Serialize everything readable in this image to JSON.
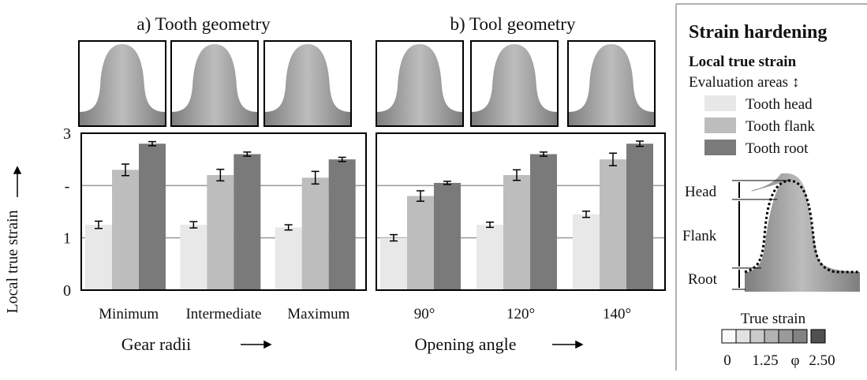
{
  "chart_data": [
    {
      "type": "bar",
      "title": "a) Tooth geometry",
      "y_label": "Local true strain",
      "x_label": "Gear radii",
      "categories": [
        "Minimum",
        "Intermediate",
        "Maximum"
      ],
      "series": [
        {
          "name": "Tooth head",
          "color": "#e8e8e8",
          "values": [
            1.25,
            1.25,
            1.2
          ],
          "errors": [
            0.07,
            0.06,
            0.05
          ]
        },
        {
          "name": "Tooth flank",
          "color": "#bdbdbd",
          "values": [
            2.3,
            2.2,
            2.15
          ],
          "errors": [
            0.11,
            0.11,
            0.12
          ]
        },
        {
          "name": "Tooth root",
          "color": "#7a7a7a",
          "values": [
            2.8,
            2.6,
            2.5
          ],
          "errors": [
            0.04,
            0.04,
            0.04
          ]
        }
      ],
      "ylim": [
        0,
        3
      ],
      "yticks": [
        0,
        1,
        {
          "value": 2,
          "label": "-"
        },
        3
      ],
      "grid": true
    },
    {
      "type": "bar",
      "title": "b) Tool geometry",
      "x_label": "Opening angle",
      "categories": [
        "90°",
        "120°",
        "140°"
      ],
      "series": [
        {
          "color": "#e8e8e8",
          "values": [
            1.0,
            1.25,
            1.45
          ],
          "errors": [
            0.06,
            0.05,
            0.06
          ]
        },
        {
          "color": "#bdbdbd",
          "values": [
            1.8,
            2.2,
            2.5
          ],
          "errors": [
            0.1,
            0.1,
            0.12
          ]
        },
        {
          "color": "#7a7a7a",
          "values": [
            2.05,
            2.6,
            2.8
          ],
          "errors": [
            0.03,
            0.04,
            0.05
          ]
        }
      ]
    }
  ],
  "side_panel": {
    "title": "Strain hardening",
    "subtitle": "Local true strain",
    "legend_title": "Evaluation areas ↕",
    "areas": [
      "Head",
      "Flank",
      "Root"
    ],
    "colorbar_title": "True strain",
    "colorbar_labels": [
      "0",
      "1.25",
      "φ",
      "2.50"
    ]
  }
}
